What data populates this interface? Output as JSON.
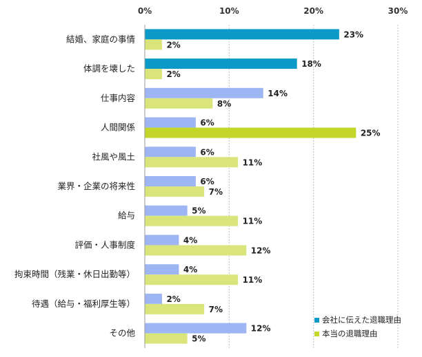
{
  "chart_data": {
    "type": "bar",
    "orientation": "horizontal",
    "title": "",
    "xlabel": "",
    "ylabel": "",
    "xlim": [
      0,
      30
    ],
    "x_ticks": [
      "0%",
      "10%",
      "20%",
      "30%"
    ],
    "grid": true,
    "legend_position": "bottom-right",
    "categories": [
      "結婚、家庭の事情",
      "体調を壊した",
      "仕事内容",
      "人間関係",
      "社風や風土",
      "業界・企業の将来性",
      "給与",
      "評価・人事制度",
      "拘束時間（残業・休日出勤等）",
      "待遇（給与・福利厚生等）",
      "その他"
    ],
    "series": [
      {
        "name": "会社に伝えた退職理由",
        "values": [
          23,
          18,
          14,
          6,
          6,
          6,
          5,
          4,
          4,
          2,
          12
        ],
        "labels": [
          "23%",
          "18%",
          "14%",
          "6%",
          "6%",
          "6%",
          "5%",
          "4%",
          "4%",
          "2%",
          "12%"
        ],
        "color": "#9db6f3",
        "highlight_color": "#0b9ac8",
        "highlight_indices": [
          0,
          1
        ]
      },
      {
        "name": "本当の退職理由",
        "values": [
          2,
          2,
          8,
          25,
          11,
          7,
          11,
          12,
          11,
          7,
          5
        ],
        "labels": [
          "2%",
          "2%",
          "8%",
          "25%",
          "11%",
          "7%",
          "11%",
          "12%",
          "11%",
          "7%",
          "5%"
        ],
        "color": "#d9e57a",
        "highlight_color": "#c5d62b",
        "highlight_indices": [
          3
        ]
      }
    ],
    "legend_colors": [
      "#0b9ac8",
      "#c5d62b"
    ]
  }
}
